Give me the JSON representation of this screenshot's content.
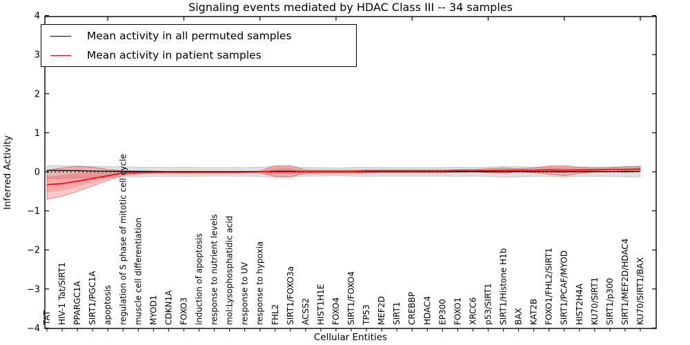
{
  "chart_data": {
    "type": "line",
    "title": "Signaling events mediated by HDAC Class III -- 34 samples",
    "xlabel": "Cellular Entities",
    "ylabel": "Inferred Activity",
    "ylim": [
      -4,
      4
    ],
    "yticks": [
      -4,
      -3,
      -2,
      -1,
      0,
      1,
      2,
      3,
      4
    ],
    "grid": false,
    "legend_position": "upper left",
    "zero_line": true,
    "categories": [
      "TAT",
      "HIV-1 Tat/SIRT1",
      "PPARGC1A",
      "SIRT1/PGC1A",
      "apoptosis",
      "regulation of S phase of mitotic cell cycle",
      "muscle cell differentiation",
      "MYOD1",
      "CDKN1A",
      "FOXO3",
      "induction of apoptosis",
      "response to nutrient levels",
      "mol:Lysophosphatidic acid",
      "response to UV",
      "response to hypoxia",
      "FHL2",
      "SIRT1/FOXO3a",
      "ACSS2",
      "HIST1H1E",
      "FOXO4",
      "SIRT1/FOXO4",
      "TP53",
      "MEF2D",
      "SIRT1",
      "CREBBP",
      "HDAC4",
      "EP300",
      "FOXO1",
      "XRCC6",
      "p53/SIRT1",
      "SIRT1/Histone H1b",
      "BAX",
      "KAT2B",
      "FOXO1/FHL2/SIRT1",
      "SIRT1/PCAF/MYOD",
      "HIST2H4A",
      "KU70/SIRT1",
      "SIRT1/p300",
      "SIRT1/MEF2D/HDAC4",
      "KU70/SIRT1/BAX"
    ],
    "series": [
      {
        "name": "Mean activity in all permuted samples",
        "color": "#000000",
        "band_color": "rgba(0,0,0,0.12)",
        "values": [
          0.04,
          0.035,
          0.03,
          0.02,
          0.015,
          0.01,
          0.01,
          0.01,
          0.005,
          0.005,
          0.005,
          0.005,
          0.005,
          0.005,
          0.005,
          0.005,
          0.005,
          0.005,
          0.005,
          0.005,
          0.005,
          0.005,
          0.005,
          0.005,
          0.005,
          0.005,
          0.005,
          0.005,
          0.005,
          0.005,
          0.005,
          0.005,
          0.005,
          0.005,
          0.005,
          0.005,
          0.005,
          0.005,
          0.01,
          0.01
        ],
        "band_lo": [
          -0.17,
          -0.17,
          -0.16,
          -0.15,
          -0.14,
          -0.13,
          -0.13,
          -0.12,
          -0.11,
          -0.12,
          -0.11,
          -0.11,
          -0.11,
          -0.11,
          -0.12,
          -0.14,
          -0.13,
          -0.11,
          -0.11,
          -0.1,
          -0.11,
          -0.12,
          -0.11,
          -0.11,
          -0.11,
          -0.11,
          -0.11,
          -0.12,
          -0.11,
          -0.12,
          -0.14,
          -0.13,
          -0.12,
          -0.12,
          -0.13,
          -0.12,
          -0.12,
          -0.12,
          -0.13,
          -0.14
        ],
        "band_hi": [
          0.16,
          0.16,
          0.15,
          0.14,
          0.13,
          0.13,
          0.12,
          0.12,
          0.11,
          0.12,
          0.11,
          0.11,
          0.11,
          0.11,
          0.12,
          0.14,
          0.13,
          0.11,
          0.11,
          0.1,
          0.11,
          0.12,
          0.11,
          0.11,
          0.11,
          0.11,
          0.11,
          0.12,
          0.11,
          0.12,
          0.14,
          0.13,
          0.12,
          0.12,
          0.13,
          0.12,
          0.12,
          0.12,
          0.13,
          0.14
        ]
      },
      {
        "name": "Mean activity in patient samples",
        "color": "#ff0000",
        "band_color": "rgba(255,0,0,0.20)",
        "values": [
          -0.33,
          -0.3,
          -0.24,
          -0.17,
          -0.1,
          -0.03,
          -0.02,
          -0.01,
          -0.01,
          -0.01,
          -0.01,
          -0.01,
          -0.01,
          -0.01,
          0.0,
          0.02,
          0.02,
          0.01,
          0.01,
          0.01,
          0.01,
          0.02,
          0.02,
          0.02,
          0.02,
          0.02,
          0.02,
          0.03,
          0.03,
          0.03,
          0.04,
          0.04,
          0.04,
          0.05,
          0.04,
          0.05,
          0.05,
          0.06,
          0.06,
          0.07
        ],
        "band_lo": [
          -0.7,
          -0.62,
          -0.5,
          -0.36,
          -0.22,
          -0.09,
          -0.05,
          -0.03,
          -0.03,
          -0.03,
          -0.03,
          -0.03,
          -0.03,
          -0.02,
          -0.02,
          -0.12,
          -0.13,
          -0.03,
          -0.02,
          -0.02,
          -0.02,
          -0.02,
          -0.01,
          -0.01,
          -0.01,
          -0.01,
          -0.01,
          -0.01,
          0.0,
          -0.02,
          -0.03,
          0.0,
          -0.02,
          -0.06,
          -0.1,
          -0.04,
          0.0,
          0.01,
          -0.01,
          0.01
        ],
        "band_hi": [
          0.04,
          0.1,
          0.14,
          0.12,
          0.06,
          0.03,
          0.02,
          0.01,
          0.01,
          0.01,
          0.01,
          0.01,
          0.01,
          0.01,
          0.02,
          0.16,
          0.16,
          0.05,
          0.04,
          0.04,
          0.04,
          0.05,
          0.05,
          0.05,
          0.05,
          0.05,
          0.05,
          0.06,
          0.06,
          0.08,
          0.1,
          0.08,
          0.1,
          0.15,
          0.16,
          0.12,
          0.1,
          0.11,
          0.13,
          0.14
        ]
      }
    ]
  }
}
